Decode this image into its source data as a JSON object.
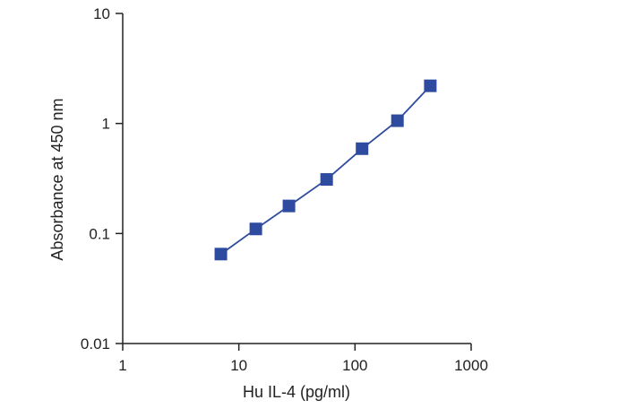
{
  "chart_data": {
    "type": "line",
    "title": "",
    "xlabel": "Hu IL-4 (pg/ml)",
    "ylabel": "Absorbance at 450 nm",
    "x_scale": "log",
    "y_scale": "log",
    "xlim": [
      1,
      1000
    ],
    "ylim": [
      0.01,
      10
    ],
    "x_ticks": [
      "1",
      "10",
      "100",
      "1000"
    ],
    "y_ticks": [
      "0.01",
      "0.1",
      "1",
      "10"
    ],
    "grid": false,
    "legend": "none",
    "series": [
      {
        "x": [
          7.0,
          14.0,
          27.0,
          57.0,
          115.0,
          232.0,
          445.0
        ],
        "y": [
          0.065,
          0.11,
          0.178,
          0.31,
          0.59,
          1.06,
          2.2
        ],
        "marker": "square",
        "color": "#2e4b9f"
      }
    ]
  }
}
